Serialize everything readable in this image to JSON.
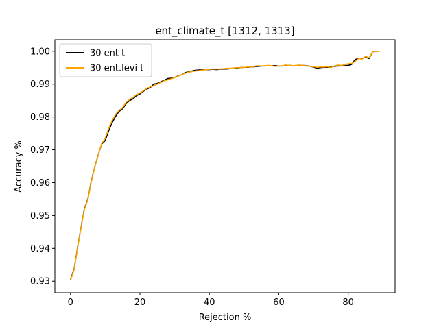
{
  "chart_data": {
    "type": "line",
    "title": "ent_climate_t  [1312, 1313]",
    "xlabel": "Rejection %",
    "ylabel": "Accuracy %",
    "xlim": [
      -4.5,
      93.5
    ],
    "ylim": [
      0.9265,
      1.0035
    ],
    "xticks": [
      0,
      20,
      40,
      60,
      80
    ],
    "yticks": [
      0.93,
      0.94,
      0.95,
      0.96,
      0.97,
      0.98,
      0.99,
      1.0
    ],
    "ytick_labels": [
      "0.93",
      "0.94",
      "0.95",
      "0.96",
      "0.97",
      "0.98",
      "0.99",
      "1.00"
    ],
    "legend_position": "upper-left",
    "grid": false,
    "x": [
      0,
      1,
      2,
      3,
      4,
      5,
      6,
      7,
      8,
      9,
      10,
      11,
      12,
      13,
      14,
      15,
      16,
      17,
      18,
      19,
      20,
      21,
      22,
      23,
      24,
      25,
      26,
      27,
      28,
      29,
      30,
      31,
      32,
      33,
      34,
      35,
      36,
      37,
      38,
      39,
      40,
      41,
      42,
      43,
      44,
      45,
      46,
      47,
      48,
      49,
      50,
      51,
      52,
      53,
      54,
      55,
      56,
      57,
      58,
      59,
      60,
      61,
      62,
      63,
      64,
      65,
      66,
      67,
      68,
      69,
      70,
      71,
      72,
      73,
      74,
      75,
      76,
      77,
      78,
      79,
      80,
      81,
      82,
      83,
      84,
      85,
      86,
      87,
      88,
      89
    ],
    "series": [
      {
        "name": "30 ent t",
        "color": "#000000",
        "values": [
          0.9305,
          0.9335,
          0.94,
          0.9462,
          0.952,
          0.955,
          0.9605,
          0.9648,
          0.9685,
          0.9718,
          0.9728,
          0.9758,
          0.9783,
          0.9802,
          0.9817,
          0.9825,
          0.984,
          0.985,
          0.9855,
          0.9865,
          0.987,
          0.9878,
          0.9885,
          0.989,
          0.99,
          0.9902,
          0.9907,
          0.9912,
          0.9917,
          0.9918,
          0.992,
          0.9925,
          0.9928,
          0.9935,
          0.9937,
          0.994,
          0.9942,
          0.9943,
          0.9943,
          0.9944,
          0.9944,
          0.9945,
          0.9944,
          0.9945,
          0.9946,
          0.9946,
          0.9947,
          0.9948,
          0.9949,
          0.995,
          0.9951,
          0.9951,
          0.9952,
          0.9953,
          0.9954,
          0.9955,
          0.9955,
          0.9956,
          0.9956,
          0.9956,
          0.9955,
          0.9955,
          0.9956,
          0.9957,
          0.9956,
          0.9956,
          0.9957,
          0.9957,
          0.9956,
          0.9954,
          0.9952,
          0.9948,
          0.995,
          0.9951,
          0.9951,
          0.9952,
          0.9954,
          0.9955,
          0.9955,
          0.9956,
          0.9957,
          0.996,
          0.9975,
          0.9978,
          0.9978,
          0.9982,
          0.9978,
          0.9998,
          1.0,
          1.0
        ]
      },
      {
        "name": "30 ent.levi t",
        "color": "#ffa500",
        "values": [
          0.9303,
          0.9332,
          0.9398,
          0.946,
          0.9518,
          0.9548,
          0.9603,
          0.9647,
          0.9684,
          0.972,
          0.9735,
          0.9765,
          0.979,
          0.9808,
          0.982,
          0.9828,
          0.9845,
          0.9853,
          0.986,
          0.9868,
          0.9873,
          0.988,
          0.9887,
          0.9892,
          0.9895,
          0.99,
          0.9905,
          0.991,
          0.9913,
          0.9916,
          0.992,
          0.9924,
          0.9928,
          0.9933,
          0.9936,
          0.9938,
          0.994,
          0.9941,
          0.9942,
          0.9944,
          0.9945,
          0.9946,
          0.9946,
          0.9946,
          0.9947,
          0.9948,
          0.9948,
          0.9949,
          0.995,
          0.995,
          0.9951,
          0.9952,
          0.9952,
          0.9954,
          0.9956,
          0.9955,
          0.9956,
          0.9957,
          0.9956,
          0.9954,
          0.9955,
          0.9956,
          0.9958,
          0.9957,
          0.9956,
          0.9957,
          0.9958,
          0.9957,
          0.9955,
          0.9954,
          0.9953,
          0.9951,
          0.9952,
          0.9952,
          0.9953,
          0.995,
          0.9955,
          0.9958,
          0.9957,
          0.9959,
          0.9962,
          0.9963,
          0.9969,
          0.9978,
          0.9976,
          0.9985,
          0.998,
          0.9998,
          1.0,
          1.0
        ]
      }
    ]
  }
}
